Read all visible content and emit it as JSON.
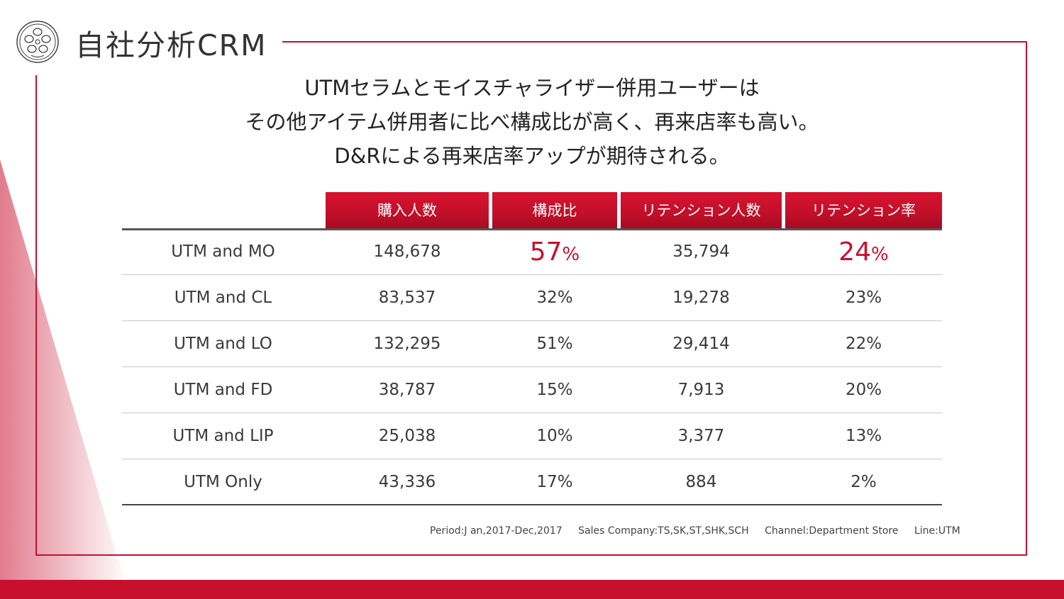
{
  "brand": {
    "title": "自社分析CRM",
    "accent_color": "#c8102e",
    "logo_icon": "flower-emblem-icon"
  },
  "headline": {
    "line1": "UTMセラムとモイスチャライザー併用ユーザーは",
    "line2": "その他アイテム併用者に比べ構成比が高く、再来店率も高い。",
    "line3": "D&Rによる再来店率アップが期待される。"
  },
  "table": {
    "headers": [
      "購入人数",
      "構成比",
      "リテンション人数",
      "リテンション率"
    ],
    "rows": [
      {
        "label": "UTM and MO",
        "buyers": "148,678",
        "share": "57",
        "share_unit": "%",
        "retained": "35,794",
        "retention_rate": "24",
        "retention_unit": "%",
        "highlight": true
      },
      {
        "label": "UTM and CL",
        "buyers": "83,537",
        "share": "32%",
        "retained": "19,278",
        "retention_rate": "23%"
      },
      {
        "label": "UTM and LO",
        "buyers": "132,295",
        "share": "51%",
        "retained": "29,414",
        "retention_rate": "22%"
      },
      {
        "label": "UTM and FD",
        "buyers": "38,787",
        "share": "15%",
        "retained": "7,913",
        "retention_rate": "20%"
      },
      {
        "label": "UTM and LIP",
        "buyers": "25,038",
        "share": "10%",
        "retained": "3,377",
        "retention_rate": "13%"
      },
      {
        "label": "UTM Only",
        "buyers": "43,336",
        "share": "17%",
        "retained": "884",
        "retention_rate": "2%"
      }
    ]
  },
  "footnote": {
    "period": "Period:J an,2017-Dec,2017",
    "company": "Sales  Company:TS,SK,ST,SHK,SCH",
    "channel": "Channel:Department  Store",
    "line": "Line:UTM"
  }
}
